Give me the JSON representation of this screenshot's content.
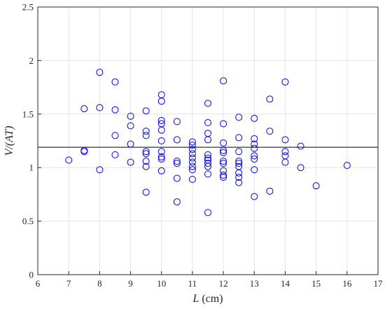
{
  "chart_data": {
    "type": "scatter",
    "title": "",
    "xlabel": "L (cm)",
    "ylabel": "V/(AT)",
    "xlim": [
      6,
      17
    ],
    "ylim": [
      0,
      2.5
    ],
    "xticks": [
      "6",
      "7",
      "8",
      "9",
      "10",
      "11",
      "12",
      "13",
      "14",
      "15",
      "16",
      "17"
    ],
    "yticks": [
      "0",
      "0.5",
      "1",
      "1.5",
      "2",
      "2.5"
    ],
    "grid": true,
    "marker_color": "#0000ff",
    "line_color": "#000000",
    "reference_line": {
      "y": 1.19
    },
    "points": [
      [
        7,
        1.07
      ],
      [
        7.5,
        1.55
      ],
      [
        7.5,
        1.16
      ],
      [
        7.5,
        1.15
      ],
      [
        8,
        1.89
      ],
      [
        8,
        1.56
      ],
      [
        8,
        0.98
      ],
      [
        8.5,
        1.8
      ],
      [
        8.5,
        1.54
      ],
      [
        8.5,
        1.3
      ],
      [
        8.5,
        1.12
      ],
      [
        9,
        1.48
      ],
      [
        9,
        1.39
      ],
      [
        9,
        1.22
      ],
      [
        9,
        1.05
      ],
      [
        9.5,
        1.53
      ],
      [
        9.5,
        1.34
      ],
      [
        9.5,
        1.3
      ],
      [
        9.5,
        1.15
      ],
      [
        9.5,
        1.13
      ],
      [
        9.5,
        1.06
      ],
      [
        9.5,
        1.01
      ],
      [
        9.5,
        0.77
      ],
      [
        10,
        1.68
      ],
      [
        10,
        1.62
      ],
      [
        10,
        1.44
      ],
      [
        10,
        1.41
      ],
      [
        10,
        1.35
      ],
      [
        10,
        1.25
      ],
      [
        10,
        1.15
      ],
      [
        10,
        1.1
      ],
      [
        10,
        1.08
      ],
      [
        10,
        0.97
      ],
      [
        10.5,
        1.43
      ],
      [
        10.5,
        1.26
      ],
      [
        10.5,
        1.06
      ],
      [
        10.5,
        1.04
      ],
      [
        10.5,
        0.9
      ],
      [
        10.5,
        0.68
      ],
      [
        11,
        1.24
      ],
      [
        11,
        1.21
      ],
      [
        11,
        1.17
      ],
      [
        11,
        1.13
      ],
      [
        11,
        1.09
      ],
      [
        11,
        1.05
      ],
      [
        11,
        1.01
      ],
      [
        11,
        0.98
      ],
      [
        11,
        0.89
      ],
      [
        11.5,
        1.6
      ],
      [
        11.5,
        1.42
      ],
      [
        11.5,
        1.32
      ],
      [
        11.5,
        1.26
      ],
      [
        11.5,
        1.12
      ],
      [
        11.5,
        1.09
      ],
      [
        11.5,
        1.07
      ],
      [
        11.5,
        1.04
      ],
      [
        11.5,
        1.01
      ],
      [
        11.5,
        0.94
      ],
      [
        11.5,
        0.58
      ],
      [
        12,
        1.81
      ],
      [
        12,
        1.41
      ],
      [
        12,
        1.23
      ],
      [
        12,
        1.16
      ],
      [
        12,
        1.14
      ],
      [
        12,
        1.06
      ],
      [
        12,
        1.04
      ],
      [
        12,
        0.97
      ],
      [
        12,
        0.93
      ],
      [
        12,
        0.91
      ],
      [
        12.5,
        1.47
      ],
      [
        12.5,
        1.28
      ],
      [
        12.5,
        1.15
      ],
      [
        12.5,
        1.06
      ],
      [
        12.5,
        1.04
      ],
      [
        12.5,
        1.01
      ],
      [
        12.5,
        0.95
      ],
      [
        12.5,
        0.91
      ],
      [
        12.5,
        0.86
      ],
      [
        13,
        1.46
      ],
      [
        13,
        1.27
      ],
      [
        13,
        1.22
      ],
      [
        13,
        1.18
      ],
      [
        13,
        1.11
      ],
      [
        13,
        1.08
      ],
      [
        13,
        0.98
      ],
      [
        13,
        0.73
      ],
      [
        13.5,
        1.64
      ],
      [
        13.5,
        1.34
      ],
      [
        13.5,
        0.78
      ],
      [
        14,
        1.8
      ],
      [
        14,
        1.26
      ],
      [
        14,
        1.15
      ],
      [
        14,
        1.11
      ],
      [
        14,
        1.05
      ],
      [
        14.5,
        1.2
      ],
      [
        14.5,
        1.0
      ],
      [
        15,
        0.83
      ],
      [
        16,
        1.02
      ]
    ]
  }
}
